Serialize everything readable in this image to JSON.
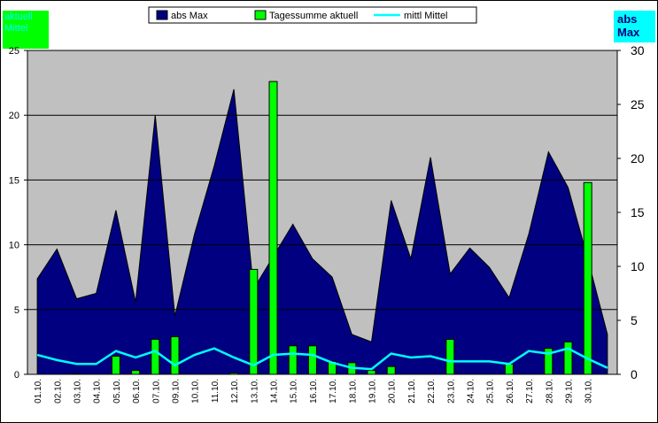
{
  "chart_data": {
    "type": "combo",
    "categories": [
      "01.10.",
      "02.10.",
      "03.10.",
      "04.10.",
      "05.10.",
      "06.10.",
      "07.10.",
      "09.10.",
      "10.10.",
      "11.10.",
      "12.10.",
      "13.10.",
      "14.10.",
      "15.10.",
      "16.10.",
      "17.10.",
      "18.10.",
      "19.10.",
      "20.10.",
      "21.10.",
      "22.10.",
      "23.10.",
      "24.10.",
      "25.10.",
      "26.10.",
      "27.10.",
      "28.10.",
      "29.10.",
      "30.10.",
      null
    ],
    "series": [
      {
        "name": "abs Max",
        "type": "area",
        "axis": "y2",
        "color": "#000080",
        "values": [
          8.85,
          11.6,
          7.0,
          7.5,
          15.2,
          6.7,
          24.0,
          5.4,
          13.0,
          19.3,
          26.4,
          7.9,
          10.9,
          13.9,
          10.7,
          9.0,
          3.7,
          3.0,
          16.1,
          10.7,
          20.1,
          9.3,
          11.7,
          9.9,
          7.1,
          13.0,
          20.6,
          17.3,
          10.7,
          3.7
        ]
      },
      {
        "name": "Tagessumme aktuell",
        "type": "bar",
        "color": "#00ff00",
        "values": [
          0,
          0,
          0.05,
          0,
          1.4,
          0.3,
          2.7,
          2.9,
          0,
          0,
          0.1,
          8.1,
          22.6,
          2.2,
          2.2,
          1.0,
          0.9,
          0.3,
          0.6,
          0,
          0,
          2.7,
          0,
          0,
          0.8,
          0,
          2.0,
          2.5,
          14.8,
          0
        ]
      },
      {
        "name": "mittl Mittel",
        "type": "line",
        "color": "#00ffff",
        "values": [
          1.5,
          1.1,
          0.8,
          0.8,
          1.8,
          1.3,
          1.8,
          0.7,
          1.5,
          2.0,
          1.3,
          0.7,
          1.5,
          1.6,
          1.5,
          0.9,
          0.5,
          0.4,
          1.6,
          1.3,
          1.4,
          1.0,
          1.0,
          1.0,
          0.8,
          1.8,
          1.6,
          2.0,
          1.2,
          0.5
        ]
      }
    ],
    "ylim": [
      0,
      25
    ],
    "yticks": [
      0,
      5,
      10,
      15,
      20,
      25
    ],
    "y2lim": [
      0,
      30
    ],
    "y2ticks": [
      0,
      5,
      10,
      15,
      20,
      25,
      30
    ],
    "grid": true,
    "left_box": "aktuell Mittel",
    "right_box": "abs Max"
  }
}
